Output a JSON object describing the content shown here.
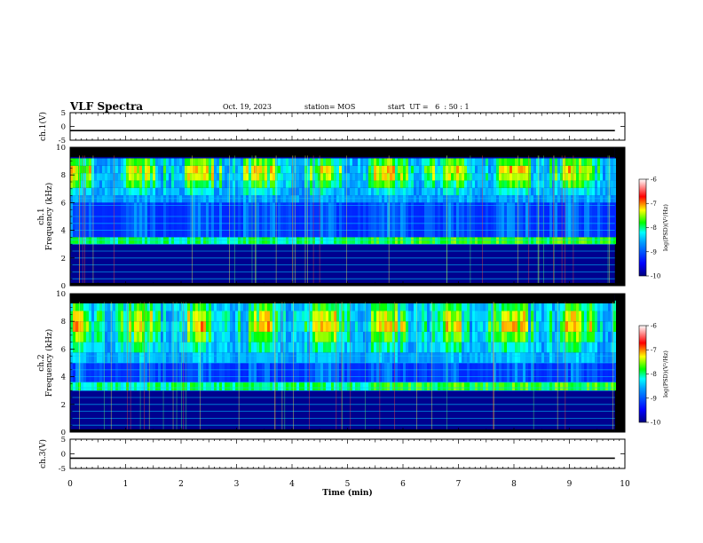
{
  "header": {
    "title": "VLF Spectra",
    "date": "Oct. 19, 2023",
    "station": "station= MOS",
    "start": "start  UT =   6  : 50 : 1"
  },
  "chart_data": {
    "type": "heatmap",
    "xlabel": "Time  (min)",
    "xlim": [
      0,
      10
    ],
    "xticks": [
      "0",
      "1",
      "2",
      "3",
      "4",
      "5",
      "6",
      "7",
      "8",
      "9",
      "10"
    ],
    "data_end_min": 9.82,
    "panels": [
      {
        "id": "ch1-voltage",
        "type": "line",
        "ylabel": "ch.1(V)",
        "ylim": [
          -5,
          5
        ],
        "yticks": [
          "5",
          "0",
          "-5"
        ],
        "value_approx": -1.5,
        "marks_min": [
          3.2,
          4.1
        ]
      },
      {
        "id": "ch1-spectrogram",
        "type": "heatmap",
        "ylabel_top": "ch.1",
        "ylabel": "Frequency (kHz)",
        "ylim": [
          0,
          10
        ],
        "yticks": [
          "0",
          "2",
          "4",
          "6",
          "8",
          "10"
        ],
        "noise_lines_khz": [
          0.5,
          1.0,
          1.5,
          2.0,
          2.5,
          3.0,
          3.3,
          4.0,
          4.5,
          5.0,
          5.8,
          6.3
        ],
        "strong_band_khz": [
          3.0,
          3.5
        ],
        "emission_band_khz": [
          6.0,
          9.2
        ],
        "colorbar": {
          "label": "log(PSD)(V²/Hz)",
          "ticks": [
            "-6",
            "-7",
            "-8",
            "-9",
            "-10"
          ],
          "range": [
            -10,
            -6
          ]
        }
      },
      {
        "id": "ch2-spectrogram",
        "type": "heatmap",
        "ylabel_top": "ch.2",
        "ylabel": "Frequency (kHz)",
        "ylim": [
          0,
          10
        ],
        "yticks": [
          "0",
          "2",
          "4",
          "6",
          "8",
          "10"
        ],
        "noise_lines_khz": [
          0.5,
          1.0,
          1.5,
          2.0,
          2.5,
          3.0,
          3.2,
          3.6,
          4.0,
          4.5,
          5.0,
          5.5
        ],
        "strong_band_khz": [
          3.0,
          3.6
        ],
        "emission_band_khz": [
          5.0,
          9.5
        ],
        "colorbar": {
          "label": "log(PSD)(V²/Hz)",
          "ticks": [
            "-6",
            "-7",
            "-8",
            "-9",
            "-10"
          ],
          "range": [
            -10,
            -6
          ]
        }
      },
      {
        "id": "ch3-voltage",
        "type": "line",
        "ylabel": "ch.3(V)",
        "ylim": [
          -5,
          5
        ],
        "yticks": [
          "5",
          "0",
          "-5"
        ],
        "value_approx": -1.5,
        "marks_min": []
      }
    ]
  }
}
